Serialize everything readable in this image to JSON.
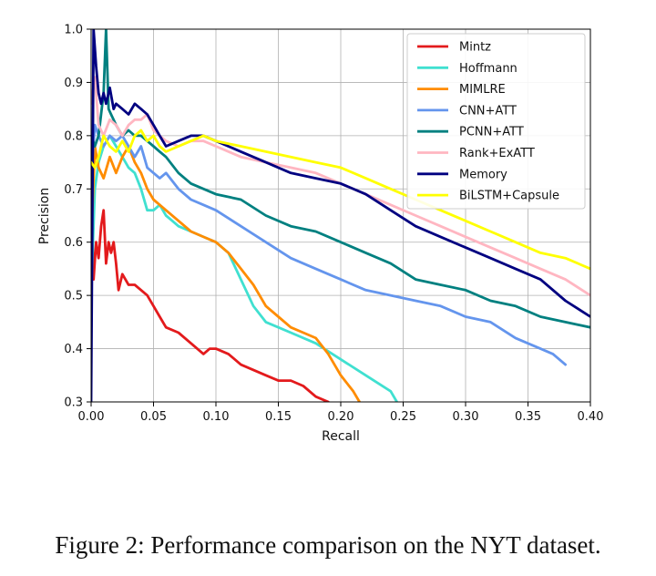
{
  "chart_data": {
    "type": "line",
    "title": "",
    "xlabel": "Recall",
    "ylabel": "Precision",
    "xlim": [
      0.0,
      0.4
    ],
    "ylim": [
      0.3,
      1.0
    ],
    "xticks": [
      "0.00",
      "0.05",
      "0.10",
      "0.15",
      "0.20",
      "0.25",
      "0.30",
      "0.35",
      "0.40"
    ],
    "yticks": [
      "0.3",
      "0.4",
      "0.5",
      "0.6",
      "0.7",
      "0.8",
      "0.9",
      "1.0"
    ],
    "grid": true,
    "legend_position": "top-right",
    "series": [
      {
        "name": "Mintz",
        "color": "#e31a1c",
        "x": [
          0.0,
          0.002,
          0.004,
          0.006,
          0.008,
          0.01,
          0.012,
          0.014,
          0.016,
          0.018,
          0.02,
          0.022,
          0.025,
          0.03,
          0.035,
          0.04,
          0.045,
          0.05,
          0.055,
          0.06,
          0.07,
          0.08,
          0.09,
          0.095,
          0.1,
          0.11,
          0.12,
          0.13,
          0.14,
          0.15,
          0.16,
          0.17,
          0.18,
          0.19
        ],
        "y": [
          0.7,
          0.53,
          0.6,
          0.57,
          0.63,
          0.66,
          0.56,
          0.6,
          0.58,
          0.6,
          0.56,
          0.51,
          0.54,
          0.52,
          0.52,
          0.51,
          0.5,
          0.48,
          0.46,
          0.44,
          0.43,
          0.41,
          0.39,
          0.4,
          0.4,
          0.39,
          0.37,
          0.36,
          0.35,
          0.34,
          0.34,
          0.33,
          0.31,
          0.3
        ]
      },
      {
        "name": "Hoffmann",
        "color": "#40e0d0",
        "x": [
          0.0,
          0.003,
          0.006,
          0.01,
          0.015,
          0.02,
          0.025,
          0.03,
          0.035,
          0.04,
          0.045,
          0.05,
          0.055,
          0.06,
          0.065,
          0.07,
          0.08,
          0.09,
          0.1,
          0.11,
          0.12,
          0.13,
          0.14,
          0.15,
          0.16,
          0.18,
          0.2,
          0.22,
          0.24,
          0.245
        ],
        "y": [
          0.5,
          0.7,
          0.75,
          0.78,
          0.8,
          0.78,
          0.76,
          0.74,
          0.73,
          0.7,
          0.66,
          0.66,
          0.67,
          0.65,
          0.64,
          0.63,
          0.62,
          0.61,
          0.6,
          0.58,
          0.53,
          0.48,
          0.45,
          0.44,
          0.43,
          0.41,
          0.38,
          0.35,
          0.32,
          0.3
        ]
      },
      {
        "name": "MIMLRE",
        "color": "#ff8c00",
        "x": [
          0.0,
          0.003,
          0.006,
          0.01,
          0.015,
          0.02,
          0.025,
          0.03,
          0.035,
          0.04,
          0.045,
          0.05,
          0.055,
          0.06,
          0.07,
          0.08,
          0.09,
          0.1,
          0.11,
          0.12,
          0.13,
          0.14,
          0.15,
          0.16,
          0.17,
          0.18,
          0.19,
          0.2,
          0.21,
          0.215
        ],
        "y": [
          0.6,
          0.78,
          0.74,
          0.72,
          0.76,
          0.73,
          0.76,
          0.78,
          0.75,
          0.73,
          0.7,
          0.68,
          0.67,
          0.66,
          0.64,
          0.62,
          0.61,
          0.6,
          0.58,
          0.55,
          0.52,
          0.48,
          0.46,
          0.44,
          0.43,
          0.42,
          0.39,
          0.35,
          0.32,
          0.3
        ]
      },
      {
        "name": "CNN+ATT",
        "color": "#6495ed",
        "x": [
          0.0,
          0.003,
          0.006,
          0.01,
          0.015,
          0.02,
          0.025,
          0.03,
          0.035,
          0.04,
          0.045,
          0.05,
          0.055,
          0.06,
          0.07,
          0.08,
          0.09,
          0.1,
          0.12,
          0.14,
          0.16,
          0.18,
          0.2,
          0.22,
          0.24,
          0.26,
          0.28,
          0.3,
          0.32,
          0.34,
          0.36,
          0.37,
          0.38
        ],
        "y": [
          0.72,
          0.82,
          0.8,
          0.78,
          0.8,
          0.79,
          0.8,
          0.78,
          0.76,
          0.78,
          0.74,
          0.73,
          0.72,
          0.73,
          0.7,
          0.68,
          0.67,
          0.66,
          0.63,
          0.6,
          0.57,
          0.55,
          0.53,
          0.51,
          0.5,
          0.49,
          0.48,
          0.46,
          0.45,
          0.42,
          0.4,
          0.39,
          0.37
        ]
      },
      {
        "name": "PCNN+ATT",
        "color": "#008080",
        "x": [
          0.0,
          0.003,
          0.006,
          0.01,
          0.012,
          0.014,
          0.016,
          0.02,
          0.025,
          0.03,
          0.035,
          0.04,
          0.045,
          0.05,
          0.055,
          0.06,
          0.07,
          0.08,
          0.1,
          0.12,
          0.14,
          0.16,
          0.18,
          0.2,
          0.22,
          0.24,
          0.26,
          0.28,
          0.3,
          0.32,
          0.34,
          0.36,
          0.38,
          0.4
        ],
        "y": [
          0.8,
          0.78,
          0.8,
          0.88,
          1.0,
          0.85,
          0.84,
          0.82,
          0.8,
          0.81,
          0.8,
          0.8,
          0.79,
          0.78,
          0.77,
          0.76,
          0.73,
          0.71,
          0.69,
          0.68,
          0.65,
          0.63,
          0.62,
          0.6,
          0.58,
          0.56,
          0.53,
          0.52,
          0.51,
          0.49,
          0.48,
          0.46,
          0.45,
          0.44
        ]
      },
      {
        "name": "Rank+ExATT",
        "color": "#ffb6c1",
        "x": [
          0.0,
          0.003,
          0.006,
          0.01,
          0.015,
          0.02,
          0.025,
          0.03,
          0.035,
          0.04,
          0.045,
          0.05,
          0.055,
          0.06,
          0.07,
          0.08,
          0.09,
          0.1,
          0.12,
          0.14,
          0.16,
          0.18,
          0.2,
          0.22,
          0.24,
          0.26,
          0.28,
          0.3,
          0.32,
          0.34,
          0.36,
          0.38,
          0.4
        ],
        "y": [
          0.86,
          0.91,
          0.82,
          0.8,
          0.83,
          0.82,
          0.8,
          0.82,
          0.83,
          0.83,
          0.84,
          0.81,
          0.8,
          0.79,
          0.78,
          0.79,
          0.79,
          0.78,
          0.76,
          0.75,
          0.74,
          0.73,
          0.71,
          0.69,
          0.67,
          0.65,
          0.63,
          0.61,
          0.59,
          0.57,
          0.55,
          0.53,
          0.5
        ]
      },
      {
        "name": "Memory",
        "color": "#000080",
        "x": [
          0.0,
          0.002,
          0.004,
          0.006,
          0.008,
          0.01,
          0.012,
          0.015,
          0.018,
          0.02,
          0.025,
          0.03,
          0.035,
          0.04,
          0.045,
          0.05,
          0.055,
          0.06,
          0.07,
          0.08,
          0.09,
          0.1,
          0.12,
          0.14,
          0.16,
          0.18,
          0.2,
          0.22,
          0.24,
          0.26,
          0.28,
          0.3,
          0.32,
          0.34,
          0.36,
          0.38,
          0.4
        ],
        "y": [
          0.3,
          1.0,
          0.93,
          0.88,
          0.86,
          0.88,
          0.86,
          0.89,
          0.85,
          0.86,
          0.85,
          0.84,
          0.86,
          0.85,
          0.84,
          0.82,
          0.8,
          0.78,
          0.79,
          0.8,
          0.8,
          0.79,
          0.77,
          0.75,
          0.73,
          0.72,
          0.71,
          0.69,
          0.66,
          0.63,
          0.61,
          0.59,
          0.57,
          0.55,
          0.53,
          0.49,
          0.46
        ]
      },
      {
        "name": "BiLSTM+Capsule",
        "color": "#ffff00",
        "x": [
          0.0,
          0.003,
          0.006,
          0.01,
          0.015,
          0.02,
          0.025,
          0.03,
          0.035,
          0.04,
          0.045,
          0.05,
          0.055,
          0.06,
          0.07,
          0.08,
          0.09,
          0.1,
          0.12,
          0.14,
          0.16,
          0.18,
          0.2,
          0.22,
          0.24,
          0.26,
          0.28,
          0.3,
          0.32,
          0.34,
          0.36,
          0.38,
          0.4
        ],
        "y": [
          0.75,
          0.74,
          0.76,
          0.8,
          0.78,
          0.77,
          0.79,
          0.77,
          0.8,
          0.81,
          0.79,
          0.8,
          0.78,
          0.77,
          0.78,
          0.79,
          0.8,
          0.79,
          0.78,
          0.77,
          0.76,
          0.75,
          0.74,
          0.72,
          0.7,
          0.68,
          0.66,
          0.64,
          0.62,
          0.6,
          0.58,
          0.57,
          0.55
        ]
      }
    ]
  },
  "caption": "Figure 2: Performance comparison on the NYT dataset."
}
